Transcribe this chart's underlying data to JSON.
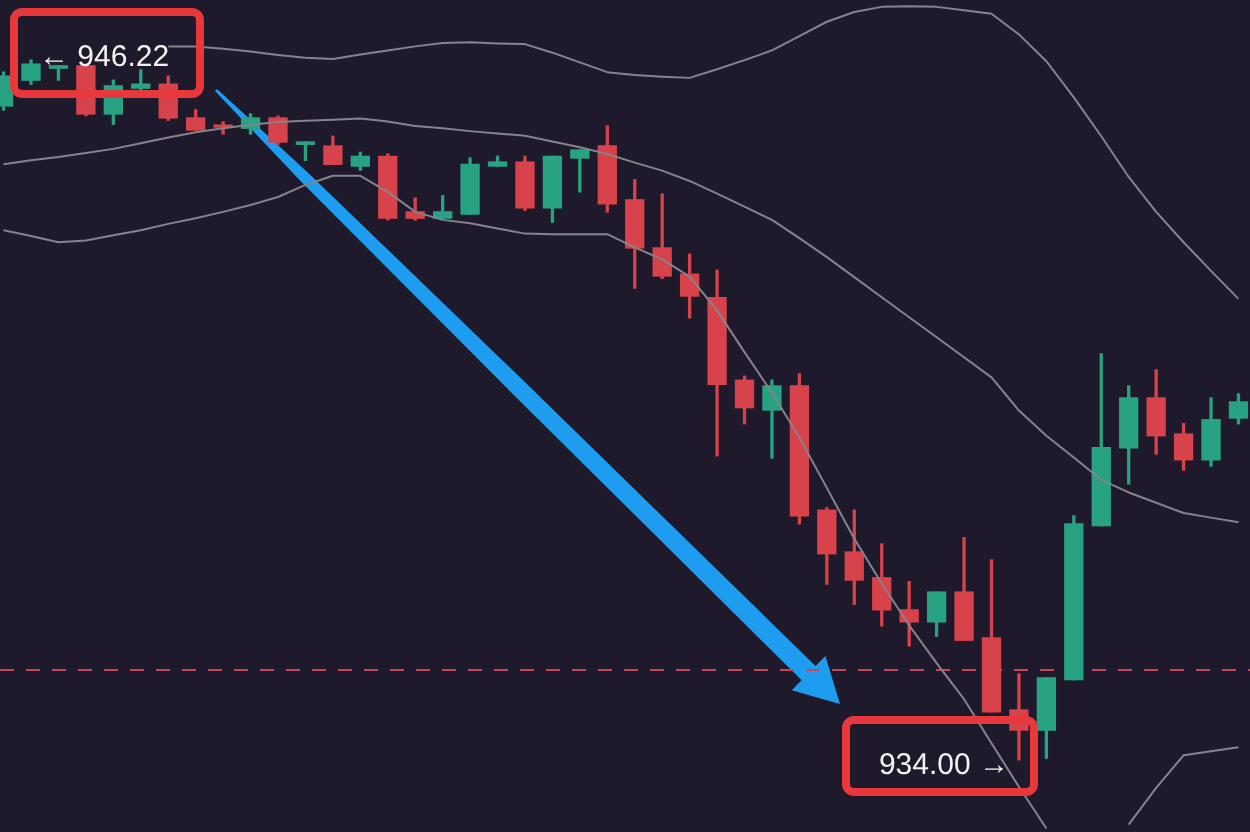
{
  "chart_data": {
    "type": "candlestick",
    "categories": [
      null,
      null,
      null,
      null,
      null,
      null,
      null,
      null,
      null,
      null,
      null,
      null,
      null,
      null,
      null,
      null,
      null,
      null,
      null,
      null,
      null,
      null,
      null,
      null,
      null,
      null,
      null,
      null,
      null,
      null,
      null,
      null,
      null,
      null,
      null,
      null,
      null,
      null,
      null,
      null,
      null,
      null,
      null,
      null,
      null,
      null
    ],
    "ohlc": [
      [
        945.42,
        946.01,
        945.35,
        945.94
      ],
      [
        945.87,
        946.22,
        945.8,
        946.15
      ],
      [
        946.08,
        946.12,
        945.87,
        946.12
      ],
      [
        946.12,
        946.15,
        945.25,
        945.28
      ],
      [
        945.28,
        945.87,
        945.1,
        945.77
      ],
      [
        945.73,
        946.05,
        945.7,
        945.8
      ],
      [
        945.8,
        945.94,
        945.17,
        945.21
      ],
      [
        945.21,
        945.35,
        945.0,
        945.0
      ],
      [
        945.08,
        945.14,
        944.93,
        945.05
      ],
      [
        945.03,
        945.28,
        944.93,
        945.21
      ],
      [
        945.21,
        945.24,
        944.75,
        944.79
      ],
      [
        944.75,
        944.79,
        944.47,
        944.79
      ],
      [
        944.72,
        944.89,
        944.4,
        944.4
      ],
      [
        944.37,
        944.61,
        944.3,
        944.54
      ],
      [
        944.54,
        944.58,
        943.43,
        943.46
      ],
      [
        943.57,
        943.81,
        943.43,
        943.46
      ],
      [
        943.46,
        943.85,
        943.46,
        943.57
      ],
      [
        943.53,
        944.51,
        943.53,
        944.4
      ],
      [
        944.37,
        944.54,
        944.37,
        944.44
      ],
      [
        944.44,
        944.54,
        943.6,
        943.64
      ],
      [
        943.64,
        944.54,
        943.39,
        944.54
      ],
      [
        944.51,
        944.65,
        943.92,
        944.65
      ],
      [
        944.72,
        945.07,
        943.57,
        943.71
      ],
      [
        943.78,
        944.13,
        942.24,
        942.94
      ],
      [
        942.94,
        943.88,
        942.41,
        942.45
      ],
      [
        942.48,
        942.83,
        941.72,
        942.1
      ],
      [
        942.07,
        942.55,
        939.31,
        940.56
      ],
      [
        940.63,
        940.7,
        939.87,
        940.15
      ],
      [
        940.11,
        940.63,
        939.27,
        940.53
      ],
      [
        940.53,
        940.74,
        938.12,
        938.26
      ],
      [
        938.36,
        938.4,
        937.07,
        937.6
      ],
      [
        937.63,
        938.36,
        936.72,
        937.14
      ],
      [
        937.18,
        937.77,
        936.34,
        936.62
      ],
      [
        936.62,
        937.11,
        935.99,
        936.41
      ],
      [
        936.41,
        936.93,
        936.16,
        936.93
      ],
      [
        936.93,
        937.88,
        936.09,
        936.09
      ],
      [
        936.13,
        937.49,
        934.84,
        934.84
      ],
      [
        934.87,
        935.5,
        934.0,
        934.52
      ],
      [
        934.52,
        935.43,
        934.03,
        935.43
      ],
      [
        935.4,
        938.26,
        935.4,
        938.12
      ],
      [
        938.09,
        941.09,
        938.09,
        939.45
      ],
      [
        939.45,
        940.53,
        938.82,
        940.32
      ],
      [
        940.32,
        940.81,
        939.34,
        939.66
      ],
      [
        939.69,
        939.87,
        939.06,
        939.24
      ],
      [
        939.24,
        940.32,
        939.13,
        939.94
      ],
      [
        939.97,
        940.39,
        939.87,
        940.25
      ]
    ],
    "colors": [
      "#27a383",
      "#27a383",
      "#27a383",
      "#d8424a",
      "#27a383",
      "#27a383",
      "#d8424a",
      "#d8424a",
      "#d8424a",
      "#27a383",
      "#d8424a",
      "#27a383",
      "#d8424a",
      "#27a383",
      "#d8424a",
      "#d8424a",
      "#27a383",
      "#27a383",
      "#27a383",
      "#d8424a",
      "#27a383",
      "#27a383",
      "#d8424a",
      "#d8424a",
      "#d8424a",
      "#d8424a",
      "#d8424a",
      "#d8424a",
      "#27a383",
      "#d8424a",
      "#d8424a",
      "#d8424a",
      "#d8424a",
      "#d8424a",
      "#27a383",
      "#d8424a",
      "#d8424a",
      "#d8424a",
      "#27a383",
      "#27a383",
      "#27a383",
      "#27a383",
      "#d8424a",
      "#d8424a",
      "#27a383",
      "#27a383"
    ],
    "series": [
      {
        "type": "line",
        "color": "#85838c",
        "values": [
          null,
          null,
          null,
          null,
          null,
          null,
          946.46,
          946.46,
          946.42,
          946.37,
          946.31,
          946.26,
          946.24,
          946.32,
          946.39,
          946.46,
          946.52,
          946.53,
          946.51,
          946.5,
          946.35,
          946.18,
          946.01,
          945.96,
          945.93,
          945.91,
          946.06,
          946.22,
          946.39,
          946.64,
          946.89,
          947.06,
          947.15,
          947.16,
          947.15,
          947.09,
          947.03,
          946.67,
          946.2,
          945.57,
          944.89,
          944.18,
          943.57,
          943.04,
          942.54,
          942.05
        ]
      },
      {
        "type": "line",
        "color": "#85838c",
        "values": [
          944.4,
          944.47,
          944.53,
          944.6,
          944.67,
          944.77,
          944.87,
          944.96,
          945.03,
          945.09,
          945.14,
          945.16,
          945.18,
          945.2,
          945.15,
          945.07,
          945.03,
          944.98,
          944.94,
          944.9,
          944.8,
          944.7,
          944.58,
          944.43,
          944.29,
          944.11,
          943.89,
          943.66,
          943.43,
          943.11,
          942.78,
          942.43,
          942.08,
          941.73,
          941.38,
          941.03,
          940.68,
          940.1,
          939.66,
          939.28,
          938.89,
          938.67,
          938.49,
          938.31,
          938.23,
          938.15
        ]
      },
      {
        "type": "line",
        "color": "#85838c",
        "values": [
          943.25,
          943.15,
          943.04,
          943.07,
          943.16,
          943.25,
          943.36,
          943.46,
          943.57,
          943.69,
          943.83,
          944.04,
          944.2,
          944.2,
          943.92,
          943.57,
          943.43,
          943.37,
          943.28,
          943.19,
          943.18,
          943.18,
          943.18,
          942.95,
          942.74,
          942.44,
          941.85,
          941.12,
          940.41,
          939.63,
          938.75,
          937.86,
          937.08,
          936.35,
          935.69,
          935.06,
          934.29,
          933.53,
          932.8,
          null,
          null,
          932.87,
          933.51,
          934.08,
          934.15,
          934.22
        ]
      }
    ],
    "ylim": [
      932.74,
      947.27
    ],
    "tick_labels": false,
    "ref_lines": [
      {
        "axis": "y",
        "value": 935.57,
        "color": "#c8445c",
        "line_style": "dashed"
      }
    ],
    "annotations": [
      "← 946.22",
      "934.00 →"
    ]
  }
}
